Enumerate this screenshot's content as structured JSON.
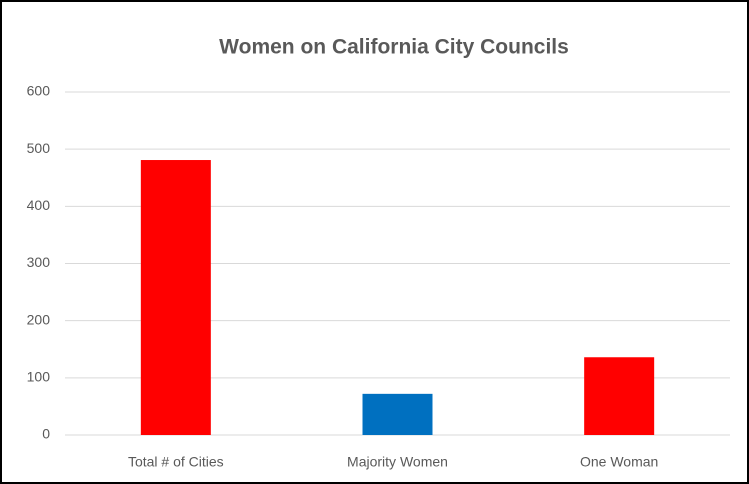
{
  "chart_data": {
    "type": "bar",
    "title": "Women on California City Councils",
    "categories": [
      "Total # of Cities",
      "Majority Women",
      "One Woman"
    ],
    "values": [
      481,
      72,
      136
    ],
    "colors": [
      "#ff0000",
      "#0070c0",
      "#ff0000"
    ],
    "ylim": [
      0,
      600
    ],
    "yticks": [
      0,
      100,
      200,
      300,
      400,
      500,
      600
    ],
    "grid": true
  }
}
